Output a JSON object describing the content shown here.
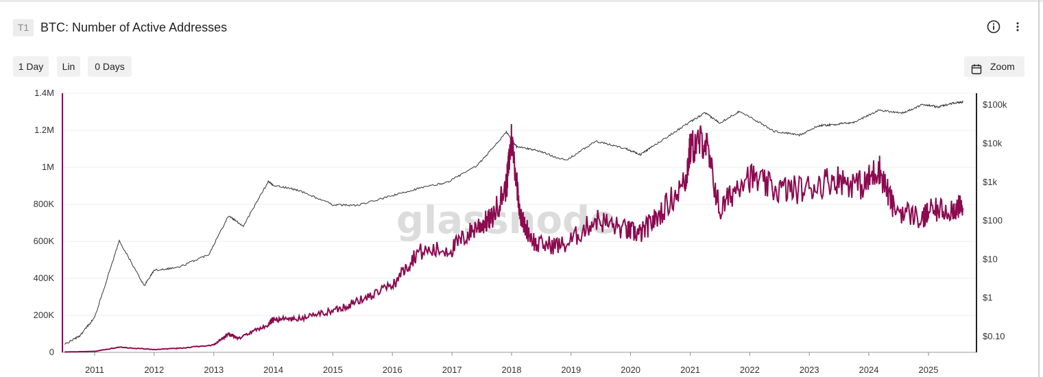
{
  "header": {
    "badge": "T1",
    "title": "BTC: Number of Active Addresses",
    "info_icon": "info-icon",
    "more_icon": "more-vertical-icon"
  },
  "toolbar": {
    "resolution": "1 Day",
    "scale": "Lin",
    "smoothing": "0 Days",
    "zoom": "Zoom",
    "zoom_icon": "calendar-icon"
  },
  "chart_data": {
    "type": "line",
    "watermark": "glassnode",
    "x_ticks": [
      "2011",
      "2012",
      "2013",
      "2014",
      "2015",
      "2016",
      "2017",
      "2018",
      "2019",
      "2020",
      "2021",
      "2022",
      "2023",
      "2024",
      "2025"
    ],
    "y_left": {
      "ticks": [
        "0",
        "200K",
        "400K",
        "600K",
        "800K",
        "1M",
        "1.2M",
        "1.4M"
      ],
      "ylim": [
        0,
        1400000
      ],
      "scale": "linear"
    },
    "y_right": {
      "ticks": [
        "$0.10",
        "$1",
        "$10",
        "$100",
        "$1k",
        "$10k",
        "$100k"
      ],
      "scale": "log"
    },
    "colors": {
      "active_addresses": "#8b0a50",
      "price": "#333333",
      "grid": "#ececec"
    },
    "series": [
      {
        "axis": "left",
        "x": [
          "2010-07",
          "2011-01",
          "2011-06",
          "2012-01",
          "2012-06",
          "2013-01",
          "2013-04",
          "2013-06",
          "2013-12",
          "2014-01",
          "2014-06",
          "2015-01",
          "2015-06",
          "2016-01",
          "2016-06",
          "2017-01",
          "2017-06",
          "2017-09",
          "2017-12",
          "2018-01",
          "2018-03",
          "2018-06",
          "2018-12",
          "2019-06",
          "2019-12",
          "2020-03",
          "2020-06",
          "2020-12",
          "2021-01",
          "2021-04",
          "2021-07",
          "2021-12",
          "2022-06",
          "2022-12",
          "2023-06",
          "2023-12",
          "2024-03",
          "2024-06",
          "2024-12",
          "2025-01",
          "2025-06",
          "2025-08"
        ],
        "y": [
          2000,
          5000,
          28000,
          15000,
          22000,
          40000,
          100000,
          75000,
          150000,
          180000,
          180000,
          225000,
          275000,
          360000,
          540000,
          560000,
          680000,
          720000,
          900000,
          1160000,
          720000,
          580000,
          580000,
          720000,
          660000,
          640000,
          720000,
          920000,
          1100000,
          1150000,
          760000,
          960000,
          880000,
          880000,
          940000,
          900000,
          1000000,
          780000,
          720000,
          760000,
          780000,
          780000
        ]
      },
      {
        "axis": "right",
        "x": [
          "2010-07",
          "2010-10",
          "2011-01",
          "2011-06",
          "2011-11",
          "2012-01",
          "2012-06",
          "2012-12",
          "2013-04",
          "2013-07",
          "2013-12",
          "2014-01",
          "2014-06",
          "2015-01",
          "2015-06",
          "2016-01",
          "2016-06",
          "2016-12",
          "2017-06",
          "2017-12",
          "2018-02",
          "2018-06",
          "2018-12",
          "2019-06",
          "2019-12",
          "2020-03",
          "2020-06",
          "2020-12",
          "2021-04",
          "2021-07",
          "2021-11",
          "2022-06",
          "2022-11",
          "2023-03",
          "2023-06",
          "2023-10",
          "2024-03",
          "2024-08",
          "2024-12",
          "2025-03",
          "2025-06",
          "2025-08"
        ],
        "y": [
          0.06,
          0.1,
          0.3,
          29,
          2,
          5,
          6,
          13,
          130,
          70,
          1000,
          800,
          600,
          250,
          240,
          430,
          650,
          950,
          2500,
          19000,
          8000,
          6500,
          3500,
          11000,
          7200,
          5000,
          9000,
          29000,
          60000,
          33000,
          67000,
          20000,
          16000,
          28000,
          30000,
          34000,
          70000,
          60000,
          100000,
          85000,
          108000,
          115000
        ]
      }
    ]
  }
}
